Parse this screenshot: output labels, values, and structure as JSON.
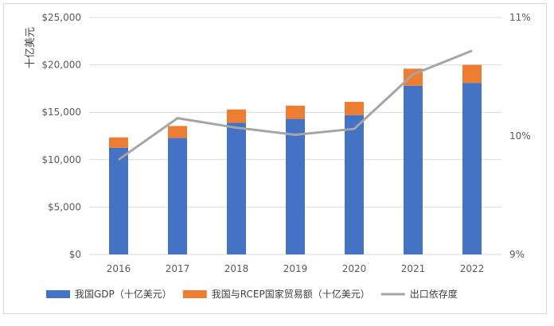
{
  "chart_data": {
    "type": "bar",
    "categories": [
      "2016",
      "2017",
      "2018",
      "2019",
      "2020",
      "2021",
      "2022"
    ],
    "series": [
      {
        "name": "我国GDP（十亿美元）",
        "kind": "bar-stack",
        "axis": "left",
        "color": "#4472c4",
        "values": [
          11250,
          12300,
          13900,
          14300,
          14700,
          17800,
          18100
        ]
      },
      {
        "name": "我国与RCEP国家贸易额（十亿美元）",
        "kind": "bar-stack",
        "axis": "left",
        "color": "#ed7d31",
        "values": [
          1100,
          1250,
          1400,
          1400,
          1400,
          1800,
          1900
        ]
      },
      {
        "name": "出口依存度",
        "kind": "line",
        "axis": "right",
        "color": "#a5a5a5",
        "values": [
          9.8,
          10.15,
          10.07,
          10.01,
          10.06,
          10.52,
          10.72
        ]
      }
    ],
    "ylabel": "十亿美元",
    "ylim": [
      0,
      25000
    ],
    "y_ticks": [
      "$0",
      "$5,000",
      "$10,000",
      "$15,000",
      "$20,000",
      "$25,000"
    ],
    "y2lim": [
      9,
      11
    ],
    "y2_ticks": [
      "9%",
      "10%",
      "11%"
    ],
    "grid": true,
    "legend": "bottom"
  }
}
